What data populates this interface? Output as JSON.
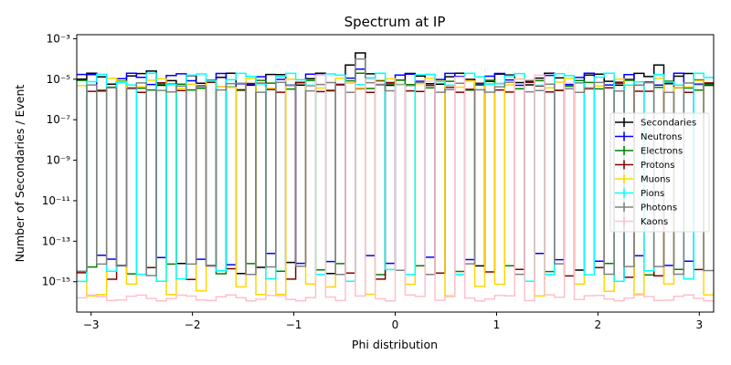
{
  "chart_data": {
    "type": "step",
    "title": "Spectrum at IP",
    "xlabel": "Phi distribution",
    "ylabel": "Number of Secondaries / Event",
    "xlim": [
      -3.1416,
      3.1416
    ],
    "ylim_log10": [
      -16.5,
      -2.8
    ],
    "log_y": true,
    "grid": false,
    "legend_position": "center-right",
    "x_ticks": [
      {
        "value": -3,
        "label": "−3"
      },
      {
        "value": -2,
        "label": "−2"
      },
      {
        "value": -1,
        "label": "−1"
      },
      {
        "value": 0,
        "label": "0"
      },
      {
        "value": 1,
        "label": "1"
      },
      {
        "value": 2,
        "label": "2"
      },
      {
        "value": 3,
        "label": "3"
      }
    ],
    "y_ticks": [
      {
        "exp": -3,
        "label": "10⁻³"
      },
      {
        "exp": -5,
        "label": "10⁻⁵"
      },
      {
        "exp": -7,
        "label": "10⁻⁷"
      },
      {
        "exp": -9,
        "label": "10⁻⁹"
      },
      {
        "exp": -11,
        "label": "10⁻¹¹"
      },
      {
        "exp": -13,
        "label": "10⁻¹³"
      },
      {
        "exp": -15,
        "label": "10⁻¹⁵"
      }
    ],
    "bins": 64,
    "series": [
      {
        "name": "Secondaries",
        "color": "#000000",
        "base": -5.0,
        "amp": 0.3,
        "low": -14.3,
        "low_bins": [
          4,
          10,
          13,
          16,
          18,
          21,
          25,
          40,
          50
        ],
        "spikes": [
          [
            28,
            -3.7
          ],
          [
            27,
            -4.3
          ],
          [
            7,
            -4.6
          ],
          [
            58,
            -4.3
          ]
        ]
      },
      {
        "name": "Neutrons",
        "color": "#0000ff",
        "base": -5.0,
        "amp": 0.3,
        "low": -13.9,
        "low_bins": [
          2,
          3,
          8,
          12,
          15,
          19,
          22,
          25,
          29,
          31,
          35,
          39,
          46,
          48,
          52,
          56,
          59,
          61
        ],
        "spikes": [
          [
            28,
            -4.5
          ]
        ]
      },
      {
        "name": "Electrons",
        "color": "#008000",
        "base": -5.3,
        "amp": 0.25,
        "low": -14.4,
        "low_bins": [
          1,
          5,
          9,
          14,
          17,
          20,
          24,
          26,
          30,
          34,
          38,
          43,
          47,
          53,
          57,
          60
        ],
        "spikes": [
          [
            28,
            -4.7
          ]
        ]
      },
      {
        "name": "Protons",
        "color": "#800000",
        "base": -5.4,
        "amp": 0.25,
        "low": -14.6,
        "low_bins": [
          0,
          3,
          7,
          11,
          15,
          21,
          27,
          30,
          36,
          41,
          44,
          49,
          52,
          55,
          58,
          62
        ],
        "spikes": []
      },
      {
        "name": "Muons",
        "color": "#ffd700",
        "base": -5.2,
        "amp": 0.25,
        "low": -15.4,
        "low_bins": [
          1,
          2,
          5,
          9,
          12,
          16,
          18,
          20,
          23,
          25,
          29,
          33,
          37,
          40,
          42,
          46,
          50,
          53,
          56,
          59,
          63
        ],
        "spikes": []
      },
      {
        "name": "Pions",
        "color": "#00ffff",
        "base": -5.0,
        "amp": 0.3,
        "low": -14.7,
        "low_bins": [
          0,
          3,
          6,
          8,
          10,
          14,
          19,
          24,
          27,
          31,
          33,
          38,
          45,
          47,
          51,
          54,
          57,
          61
        ],
        "spikes": []
      },
      {
        "name": "Photons",
        "color": "#808080",
        "base": -5.4,
        "amp": 0.25,
        "low": -14.4,
        "low_bins": [
          0,
          2,
          4,
          7,
          11,
          13,
          17,
          19,
          22,
          26,
          28,
          32,
          35,
          39,
          44,
          48,
          53,
          55,
          58,
          60,
          63
        ],
        "spikes": [
          [
            28,
            -4.0
          ]
        ]
      },
      {
        "name": "Kaons",
        "color": "#ffc0cb",
        "base": -15.8,
        "amp": 0.15,
        "low": -15.8,
        "low_bins": [],
        "spikes": [
          [
            24,
            -4.8
          ],
          [
            27,
            -5.2
          ],
          [
            29,
            -5.0
          ],
          [
            32,
            -5.3
          ],
          [
            35,
            -5.1
          ],
          [
            38,
            -4.9
          ],
          [
            44,
            -5.0
          ],
          [
            46,
            -4.8
          ],
          [
            49,
            -5.2
          ]
        ]
      }
    ]
  }
}
